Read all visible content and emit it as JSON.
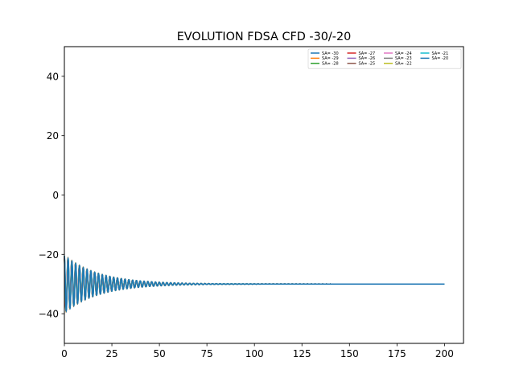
{
  "chart_data": {
    "type": "line",
    "title": "EVOLUTION FDSA CFD -30/-20",
    "xlabel": "",
    "ylabel": "",
    "xlim": [
      0,
      210
    ],
    "ylim": [
      -50,
      50
    ],
    "xticks": [
      0,
      25,
      50,
      75,
      100,
      125,
      150,
      175,
      200
    ],
    "yticks": [
      -40,
      -20,
      0,
      20,
      40
    ],
    "grid": false,
    "legend_position": "top-right",
    "legend_columns": 4,
    "x_range": [
      0,
      200
    ],
    "baseline": -30,
    "initial_amplitude": 9.5,
    "decay_rate": 0.055,
    "period": 2,
    "series": [
      {
        "name": "SA= -30",
        "color": "#1f77b4"
      },
      {
        "name": "SA= -29",
        "color": "#ff7f0e"
      },
      {
        "name": "SA= -28",
        "color": "#2ca02c"
      },
      {
        "name": "SA= -27",
        "color": "#d62728"
      },
      {
        "name": "SA= -26",
        "color": "#9467bd"
      },
      {
        "name": "SA= -25",
        "color": "#8c564b"
      },
      {
        "name": "SA= -24",
        "color": "#e377c2"
      },
      {
        "name": "SA= -23",
        "color": "#7f7f7f"
      },
      {
        "name": "SA= -22",
        "color": "#bcbd22"
      },
      {
        "name": "SA= -21",
        "color": "#17becf"
      },
      {
        "name": "SA= -20",
        "color": "#1f77b4"
      }
    ]
  }
}
